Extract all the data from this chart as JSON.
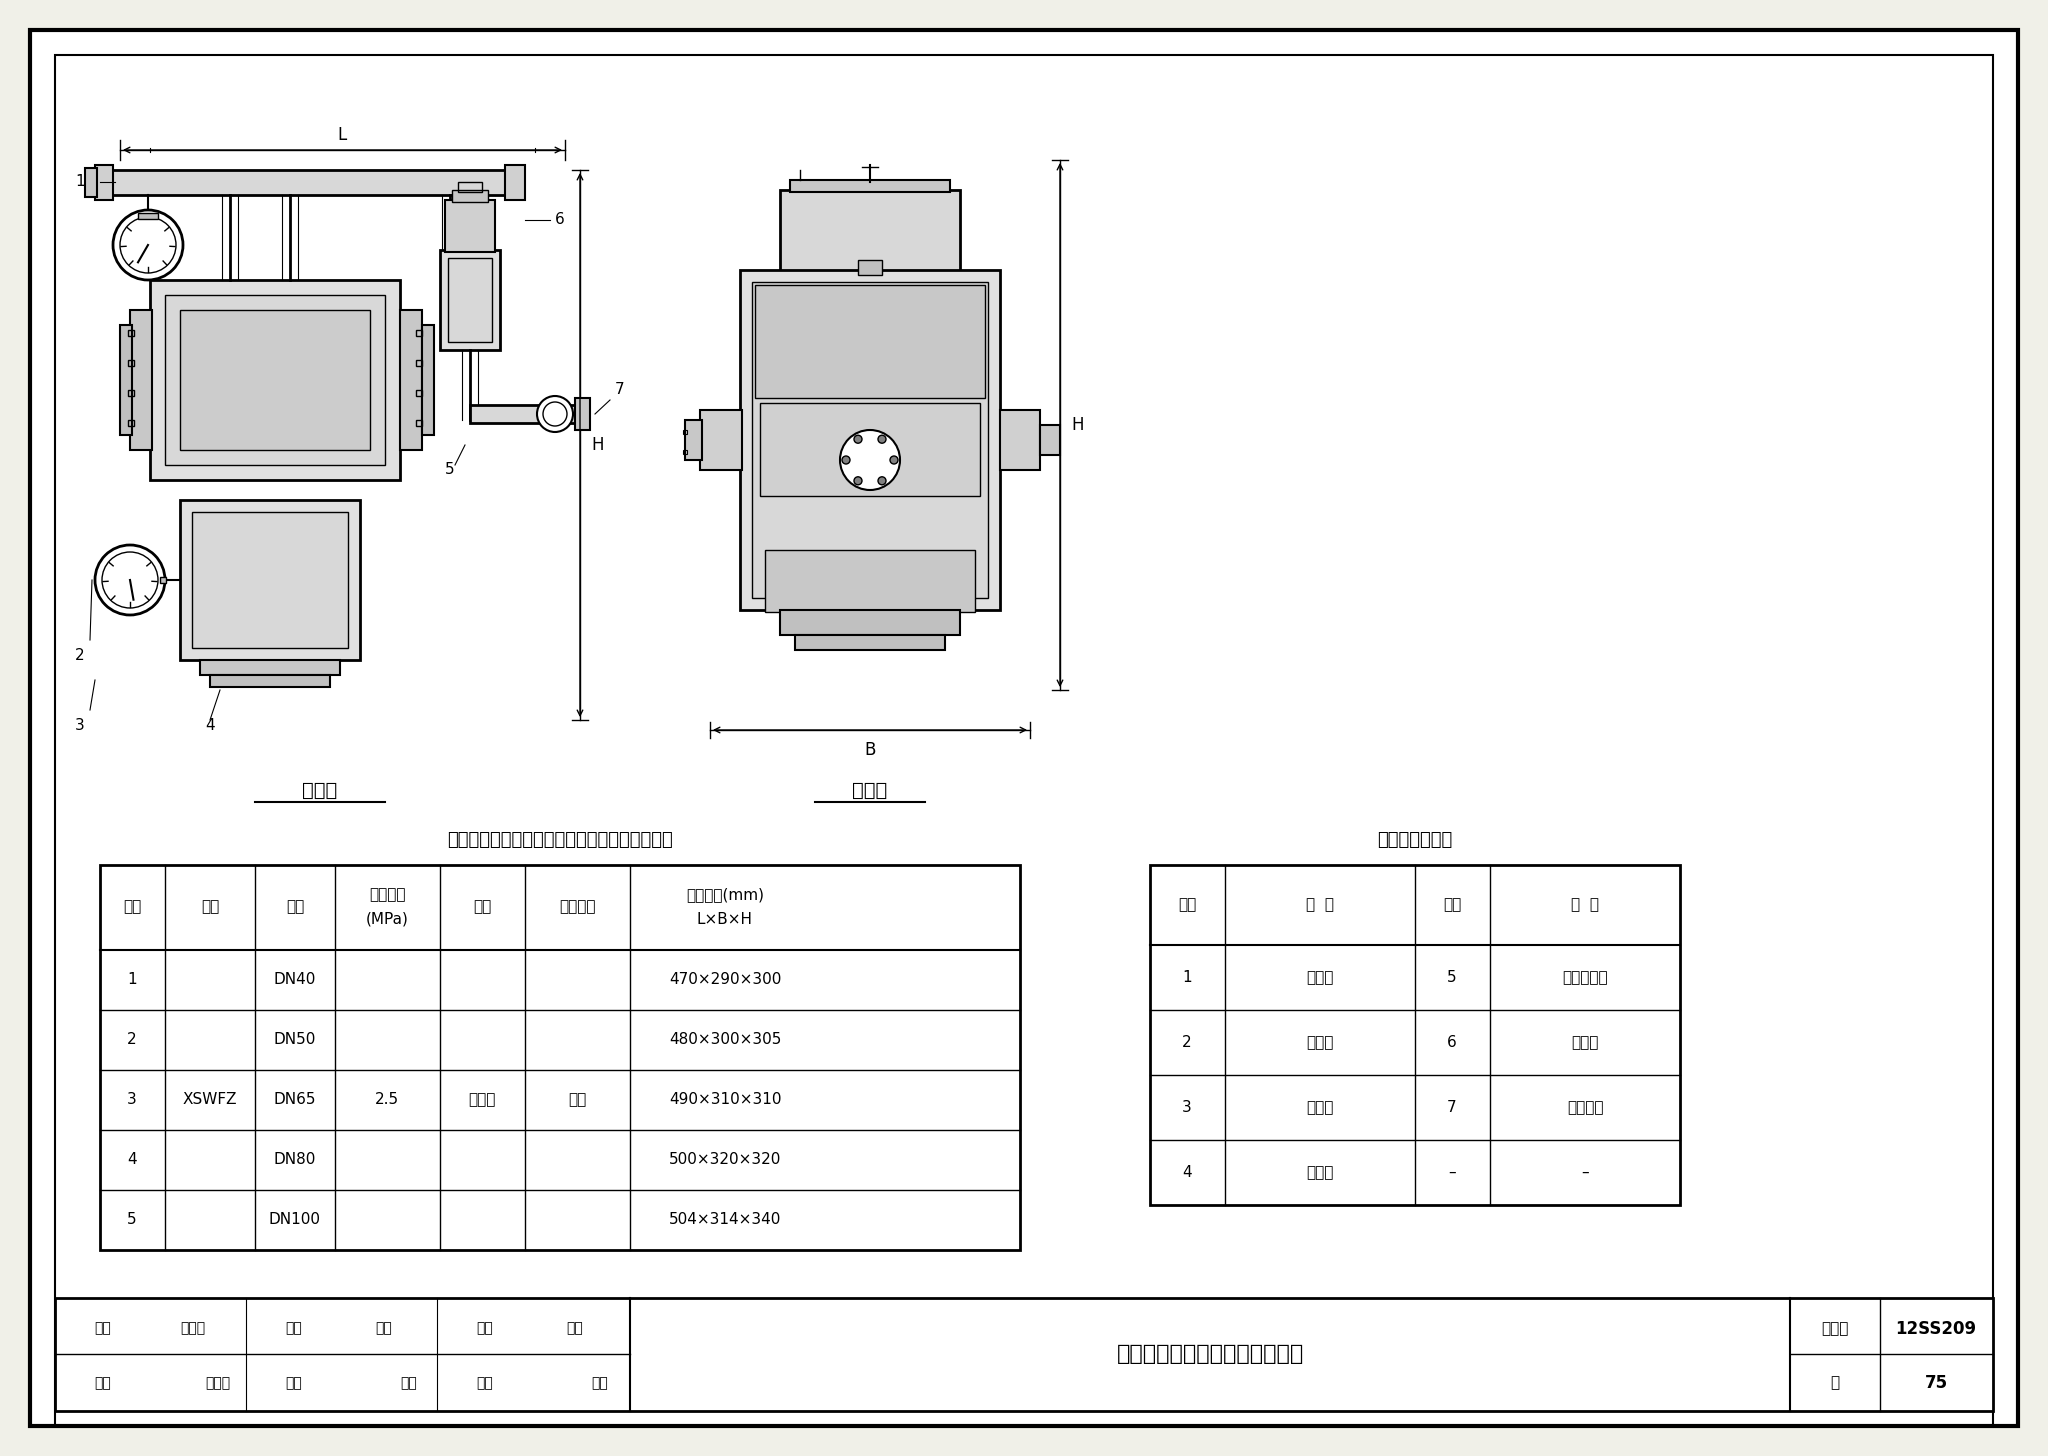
{
  "page_bg": "#ffffff",
  "border_color": "#000000",
  "title_main": "中压开式系统分区控制阀外形图",
  "title_atlas": "图集号",
  "atlas_number": "12SS209",
  "page_label": "页",
  "page_number": "75",
  "front_view_label": "前视图",
  "side_view_label": "侧视图",
  "table1_title": "中压开式系统分区控制阀技术参数及外形尺寸表",
  "table2_title": "阀箱主要组件表",
  "table1_headers_line1": [
    "序号",
    "型号",
    "规格",
    "公称压力",
    "材质",
    "接口形式",
    "外形尺寸(mm)"
  ],
  "table1_headers_line2": [
    "",
    "",
    "",
    "(MPa)",
    "",
    "",
    "L×B×H"
  ],
  "table1_rows": [
    [
      "1",
      "",
      "DN40",
      "",
      "",
      "",
      "470×290×300"
    ],
    [
      "2",
      "",
      "DN50",
      "",
      "",
      "",
      "480×300×305"
    ],
    [
      "3",
      "XSWFZ",
      "DN65",
      "2.5",
      "不锈钢",
      "法兰",
      "490×310×310"
    ],
    [
      "4",
      "",
      "DN80",
      "",
      "",
      "",
      "500×320×320"
    ],
    [
      "5",
      "",
      "DN100",
      "",
      "",
      "",
      "504×314×340"
    ]
  ],
  "table2_title_text": "阀箱主要组件表",
  "table2_headers": [
    "编号",
    "名  称",
    "编号",
    "名  称"
  ],
  "table2_rows": [
    [
      "1",
      "泄漏阀",
      "5",
      "紧急手动阀"
    ],
    [
      "2",
      "电磁阀",
      "6",
      "控制阀"
    ],
    [
      "3",
      "压力表",
      "7",
      "报警管路"
    ],
    [
      "4",
      "雨淋阀",
      "–",
      "–"
    ]
  ],
  "footer_left_labels": [
    "审核",
    "鄢红林",
    "校对",
    "王飞",
    "设计",
    "洪勇"
  ],
  "footer_left_sigs": [
    "郝小东",
    "万木",
    "汉勇"
  ],
  "dim_L": "L",
  "dim_H": "H",
  "dim_B": "B"
}
